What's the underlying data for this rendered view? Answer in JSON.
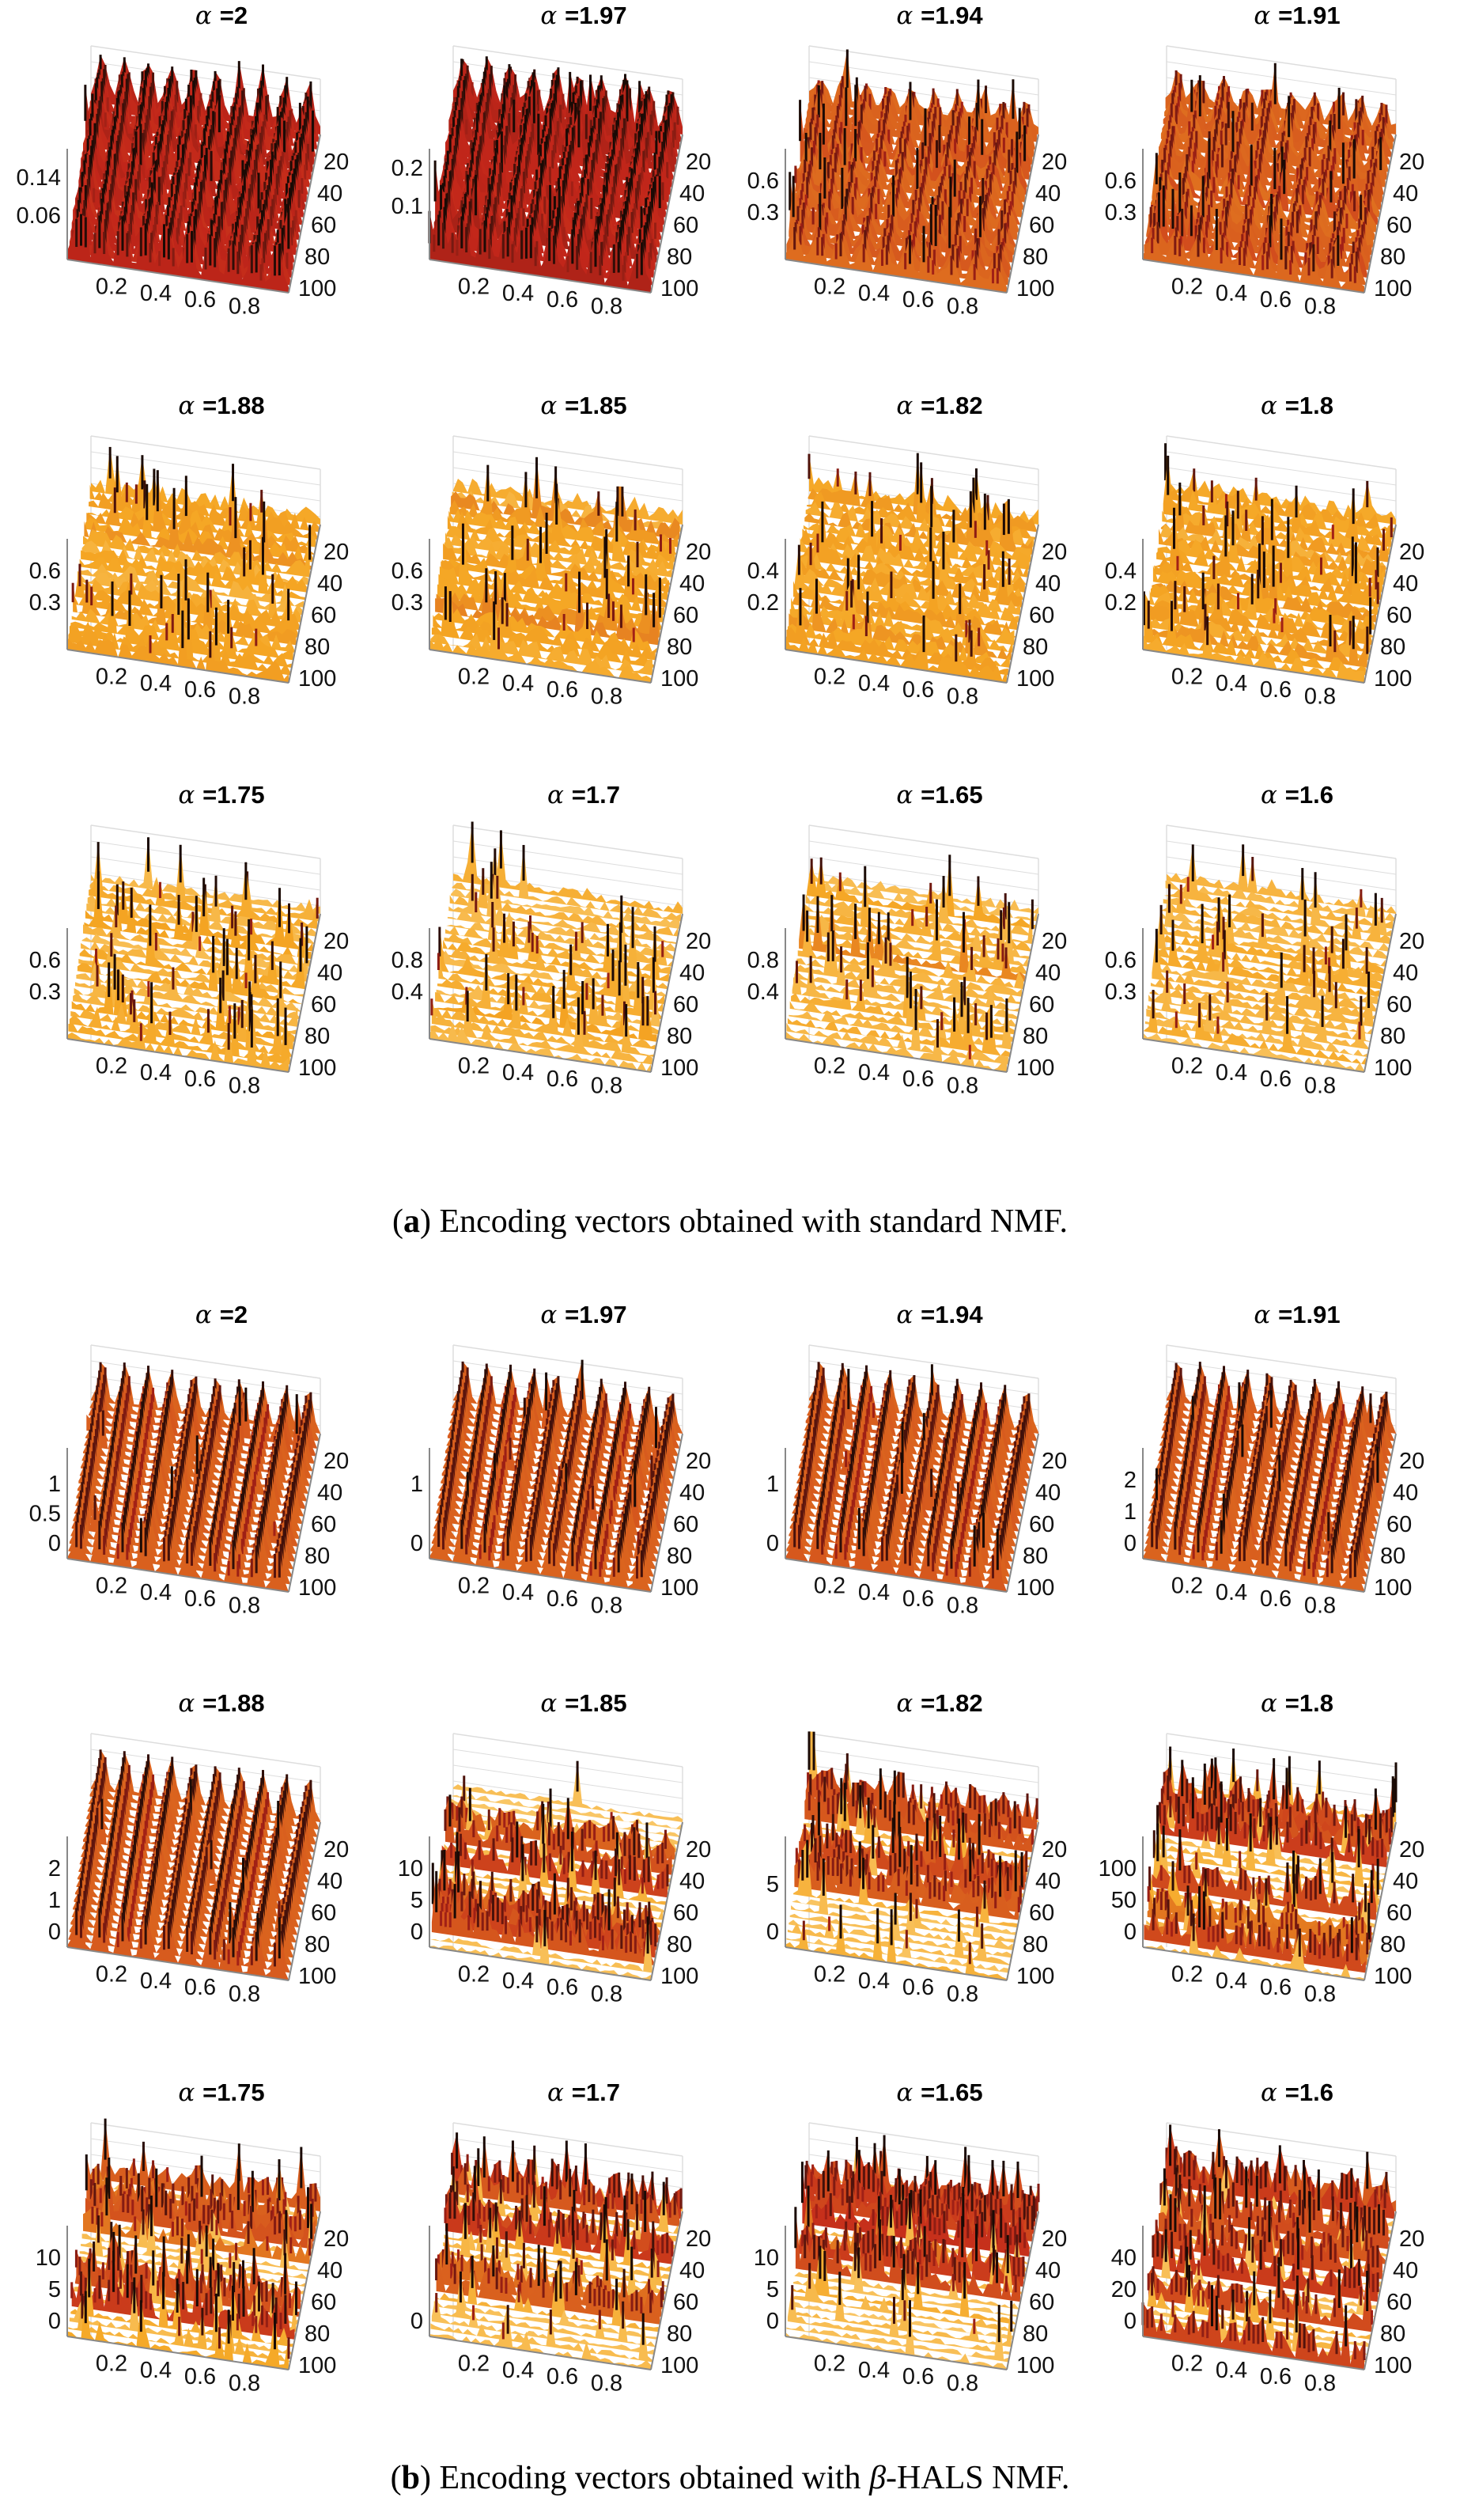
{
  "chart_data": [
    {
      "type": "surface-grid",
      "title": "Encoding vectors obtained with standard NMF",
      "caption": {
        "label": "a",
        "text": "Encoding vectors obtained with standard NMF."
      },
      "x_ticks": [
        "0.2",
        "0.4",
        "0.6",
        "0.8"
      ],
      "y_ticks": [
        "20",
        "40",
        "60",
        "80",
        "100"
      ],
      "panels": [
        {
          "alpha_label": "=2",
          "alpha": 2,
          "z_ticks": [
            "0.06",
            "0.14"
          ],
          "zmax": 0.2,
          "pattern": "ridges",
          "spike": 0.15
        },
        {
          "alpha_label": "=1.97",
          "alpha": 1.97,
          "z_ticks": [
            "0.1",
            "0.2"
          ],
          "zmax": 0.25,
          "pattern": "ridges",
          "spike": 0.2
        },
        {
          "alpha_label": "=1.94",
          "alpha": 1.94,
          "z_ticks": [
            "0.3",
            "0.6"
          ],
          "zmax": 0.9,
          "pattern": "noisy-ridges",
          "spike": 0.3
        },
        {
          "alpha_label": "=1.91",
          "alpha": 1.91,
          "z_ticks": [
            "0.3",
            "0.6"
          ],
          "zmax": 0.9,
          "pattern": "noisy-ridges",
          "spike": 0.3
        },
        {
          "alpha_label": "=1.88",
          "alpha": 1.88,
          "z_ticks": [
            "0.3",
            "0.6"
          ],
          "zmax": 0.9,
          "pattern": "noise",
          "spike": 0.35
        },
        {
          "alpha_label": "=1.85",
          "alpha": 1.85,
          "z_ticks": [
            "0.3",
            "0.6"
          ],
          "zmax": 0.9,
          "pattern": "noise",
          "spike": 0.35
        },
        {
          "alpha_label": "=1.82",
          "alpha": 1.82,
          "z_ticks": [
            "0.2",
            "0.4"
          ],
          "zmax": 0.6,
          "pattern": "noise",
          "spike": 0.45
        },
        {
          "alpha_label": "=1.8",
          "alpha": 1.8,
          "z_ticks": [
            "0.2",
            "0.4"
          ],
          "zmax": 0.6,
          "pattern": "noise",
          "spike": 0.45
        },
        {
          "alpha_label": "=1.75",
          "alpha": 1.75,
          "z_ticks": [
            "0.3",
            "0.6"
          ],
          "zmax": 0.9,
          "pattern": "sparse",
          "spike": 0.5
        },
        {
          "alpha_label": "=1.7",
          "alpha": 1.7,
          "z_ticks": [
            "0.4",
            "0.8"
          ],
          "zmax": 1.2,
          "pattern": "sparse",
          "spike": 0.5
        },
        {
          "alpha_label": "=1.65",
          "alpha": 1.65,
          "z_ticks": [
            "0.4",
            "0.8"
          ],
          "zmax": 1.2,
          "pattern": "sparse",
          "spike": 0.5
        },
        {
          "alpha_label": "=1.6",
          "alpha": 1.6,
          "z_ticks": [
            "0.3",
            "0.6"
          ],
          "zmax": 0.9,
          "pattern": "sparse",
          "spike": 0.5
        }
      ]
    },
    {
      "type": "surface-grid",
      "title": "Encoding vectors obtained with beta-HALS NMF",
      "caption": {
        "label": "b",
        "text_before": "Encoding vectors obtained with ",
        "text_beta": "β",
        "text_after": "-HALS NMF."
      },
      "x_ticks": [
        "0.2",
        "0.4",
        "0.6",
        "0.8"
      ],
      "y_ticks": [
        "20",
        "40",
        "60",
        "80",
        "100"
      ],
      "panels": [
        {
          "alpha_label": "=2",
          "alpha": 2,
          "z_ticks": [
            "0",
            "0.5",
            "1"
          ],
          "zmax": 1.6,
          "pattern": "smooth-ridges",
          "spike": 0.1
        },
        {
          "alpha_label": "=1.97",
          "alpha": 1.97,
          "z_ticks": [
            "0",
            "1"
          ],
          "zmax": 1.6,
          "pattern": "smooth-ridges",
          "spike": 0.1
        },
        {
          "alpha_label": "=1.94",
          "alpha": 1.94,
          "z_ticks": [
            "0",
            "1"
          ],
          "zmax": 1.6,
          "pattern": "smooth-ridges",
          "spike": 0.1
        },
        {
          "alpha_label": "=1.91",
          "alpha": 1.91,
          "z_ticks": [
            "0",
            "1",
            "2"
          ],
          "zmax": 3,
          "pattern": "smooth-ridges",
          "spike": 0.1
        },
        {
          "alpha_label": "=1.88",
          "alpha": 1.88,
          "z_ticks": [
            "0",
            "1",
            "2"
          ],
          "zmax": 3,
          "pattern": "smooth-ridges",
          "spike": 0.1
        },
        {
          "alpha_label": "=1.85",
          "alpha": 1.85,
          "z_ticks": [
            "0",
            "5",
            "10"
          ],
          "zmax": 15,
          "pattern": "striped",
          "spike": 0.3
        },
        {
          "alpha_label": "=1.82",
          "alpha": 1.82,
          "z_ticks": [
            "0",
            "5"
          ],
          "zmax": 10,
          "pattern": "striped",
          "spike": 0.35
        },
        {
          "alpha_label": "=1.8",
          "alpha": 1.8,
          "z_ticks": [
            "0",
            "50",
            "100"
          ],
          "zmax": 150,
          "pattern": "striped",
          "spike": 0.6
        },
        {
          "alpha_label": "=1.75",
          "alpha": 1.75,
          "z_ticks": [
            "0",
            "5",
            "10"
          ],
          "zmax": 15,
          "pattern": "striped",
          "spike": 0.6
        },
        {
          "alpha_label": "=1.7",
          "alpha": 1.7,
          "z_ticks": [
            "0"
          ],
          "zmax": 15,
          "pattern": "striped",
          "spike": 0.6
        },
        {
          "alpha_label": "=1.65",
          "alpha": 1.65,
          "z_ticks": [
            "0",
            "5",
            "10"
          ],
          "zmax": 15,
          "pattern": "striped",
          "spike": 0.4
        },
        {
          "alpha_label": "=1.6",
          "alpha": 1.6,
          "z_ticks": [
            "0",
            "20",
            "40"
          ],
          "zmax": 60,
          "pattern": "striped",
          "spike": 0.6
        }
      ]
    }
  ],
  "colors": {
    "low": "#fff6c8",
    "mid": "#f5a623",
    "high": "#c2261a",
    "peak": "#1a0a05",
    "axis": "#888888",
    "grid": "#dddddd"
  }
}
